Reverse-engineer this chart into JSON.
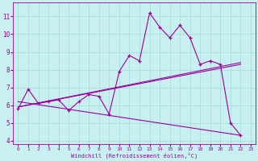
{
  "title": "",
  "xlabel": "Windchill (Refroidissement éolien,°C)",
  "xlim": [
    -0.5,
    23.5
  ],
  "ylim": [
    3.8,
    11.8
  ],
  "yticks": [
    4,
    5,
    6,
    7,
    8,
    9,
    10,
    11
  ],
  "xticks": [
    0,
    1,
    2,
    3,
    4,
    5,
    6,
    7,
    8,
    9,
    10,
    11,
    12,
    13,
    14,
    15,
    16,
    17,
    18,
    19,
    20,
    21,
    22,
    23
  ],
  "bg_color": "#c8f0f0",
  "line_color": "#990099",
  "grid_color": "#aadddd",
  "main_line": {
    "x": [
      0,
      1,
      2,
      3,
      4,
      5,
      6,
      7,
      8,
      9,
      10,
      11,
      12,
      13,
      14,
      15,
      16,
      17,
      18,
      19,
      20,
      21,
      22
    ],
    "y": [
      5.8,
      6.9,
      6.1,
      6.2,
      6.3,
      5.7,
      6.2,
      6.6,
      6.5,
      5.5,
      7.9,
      8.8,
      8.5,
      11.2,
      10.4,
      9.8,
      10.5,
      9.8,
      8.3,
      8.5,
      8.3,
      5.0,
      4.3
    ]
  },
  "trend_lines": [
    {
      "x": [
        0,
        22
      ],
      "y": [
        5.9,
        8.3
      ]
    },
    {
      "x": [
        0,
        22
      ],
      "y": [
        6.2,
        4.3
      ]
    },
    {
      "x": [
        0,
        22
      ],
      "y": [
        5.9,
        8.4
      ]
    }
  ]
}
